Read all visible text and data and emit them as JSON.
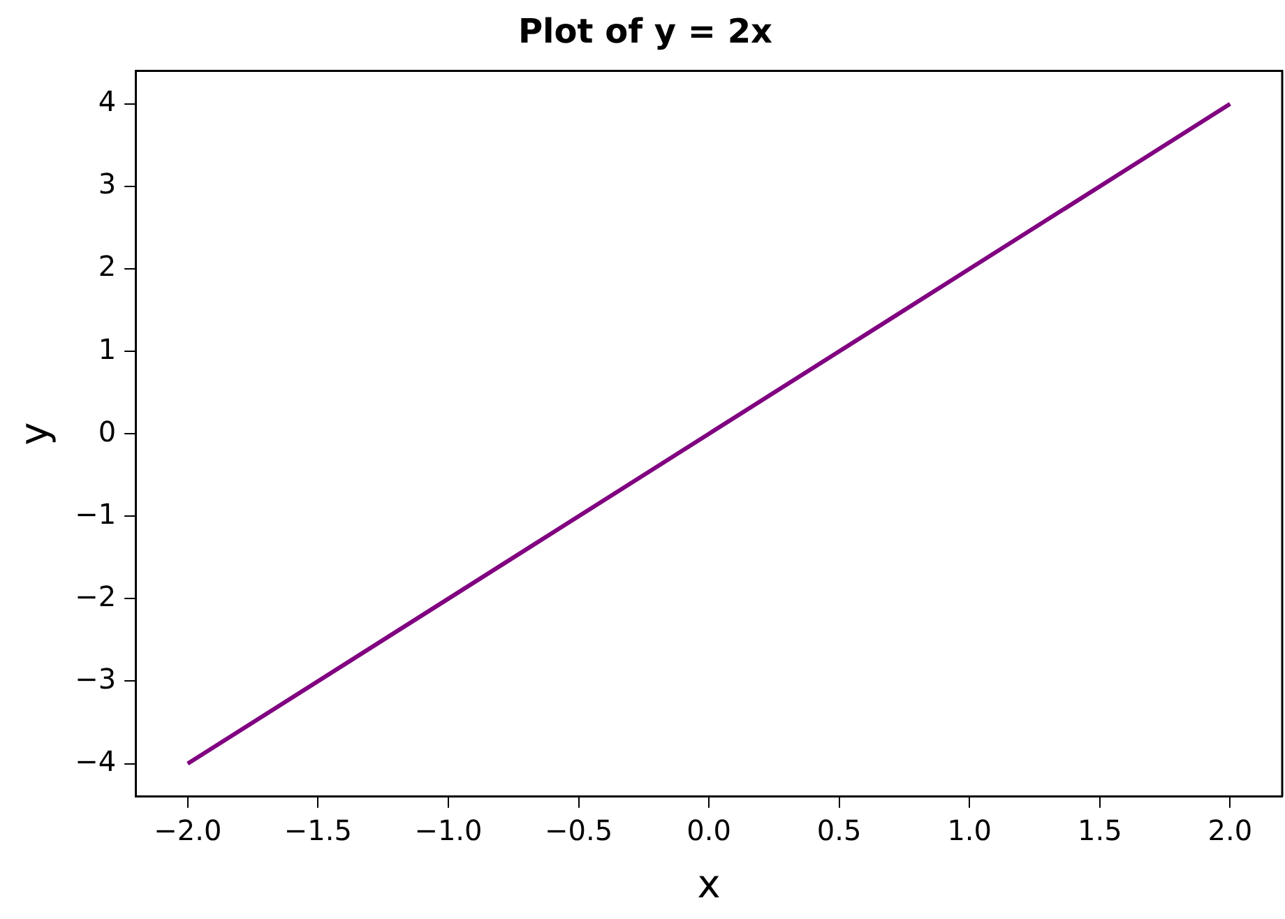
{
  "chart_data": {
    "type": "line",
    "title": "Plot of y = 2x",
    "xlabel": "x",
    "ylabel": "y",
    "x": [
      -2,
      -1,
      0,
      1,
      2
    ],
    "series": [
      {
        "color": "#800080",
        "values": [
          -4,
          -2,
          0,
          2,
          4
        ]
      }
    ],
    "xlim": [
      -2.2,
      2.2
    ],
    "ylim": [
      -4.4,
      4.4
    ],
    "xticks": [
      {
        "value": -2,
        "label": "−2.0"
      },
      {
        "value": -1.5,
        "label": "−1.5"
      },
      {
        "value": -1,
        "label": "−1.0"
      },
      {
        "value": -0.5,
        "label": "−0.5"
      },
      {
        "value": 0,
        "label": "0.0"
      },
      {
        "value": 0.5,
        "label": "0.5"
      },
      {
        "value": 1,
        "label": "1.0"
      },
      {
        "value": 1.5,
        "label": "1.5"
      },
      {
        "value": 2,
        "label": "2.0"
      }
    ],
    "yticks": [
      {
        "value": -4,
        "label": "−4"
      },
      {
        "value": -3,
        "label": "−3"
      },
      {
        "value": -2,
        "label": "−2"
      },
      {
        "value": -1,
        "label": "−1"
      },
      0,
      1,
      2,
      3,
      4
    ],
    "grid": false,
    "legend": false,
    "marker": "none",
    "line_style": "solid"
  }
}
